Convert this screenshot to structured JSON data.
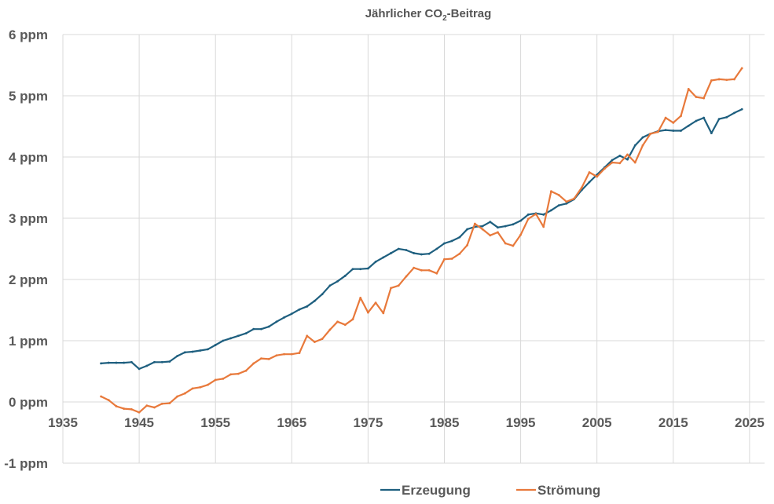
{
  "chart_data": {
    "type": "line",
    "title": "Jährlicher CO₂-Beitrag",
    "title_parts": {
      "pre": "Jährlicher CO",
      "sub": "2",
      "post": "-Beitrag"
    },
    "xlabel": "",
    "ylabel": "",
    "xlim": [
      1935,
      2027
    ],
    "ylim": [
      -1,
      6
    ],
    "grid": true,
    "legend_position": "bottom",
    "x_ticks": [
      1935,
      1945,
      1955,
      1965,
      1975,
      1985,
      1995,
      2005,
      2015,
      2025
    ],
    "x_tick_labels": [
      "1935",
      "1945",
      "1955",
      "1965",
      "1975",
      "1985",
      "1995",
      "2005",
      "2015",
      "2025"
    ],
    "y_ticks": [
      -1,
      0,
      1,
      2,
      3,
      4,
      5,
      6
    ],
    "y_tick_labels": [
      "-1 ppm",
      "0 ppm",
      "1 ppm",
      "2 ppm",
      "3 ppm",
      "4 ppm",
      "5 ppm",
      "6 ppm"
    ],
    "x_axis_crosses_at": 0,
    "x": [
      1940,
      1941,
      1942,
      1943,
      1944,
      1945,
      1946,
      1947,
      1948,
      1949,
      1950,
      1951,
      1952,
      1953,
      1954,
      1955,
      1956,
      1957,
      1958,
      1959,
      1960,
      1961,
      1962,
      1963,
      1964,
      1965,
      1966,
      1967,
      1968,
      1969,
      1970,
      1971,
      1972,
      1973,
      1974,
      1975,
      1976,
      1977,
      1978,
      1979,
      1980,
      1981,
      1982,
      1983,
      1984,
      1985,
      1986,
      1987,
      1988,
      1989,
      1990,
      1991,
      1992,
      1993,
      1994,
      1995,
      1996,
      1997,
      1998,
      1999,
      2000,
      2001,
      2002,
      2003,
      2004,
      2005,
      2006,
      2007,
      2008,
      2009,
      2010,
      2011,
      2012,
      2013,
      2014,
      2015,
      2016,
      2017,
      2018,
      2019,
      2020,
      2021,
      2022,
      2023,
      2024
    ],
    "series": [
      {
        "name": "Erzeugung",
        "color": "#1E5F7F",
        "values": [
          0.63,
          0.64,
          0.64,
          0.64,
          0.65,
          0.54,
          0.59,
          0.65,
          0.65,
          0.66,
          0.75,
          0.81,
          0.82,
          0.84,
          0.86,
          0.93,
          1.0,
          1.04,
          1.08,
          1.12,
          1.19,
          1.19,
          1.23,
          1.31,
          1.38,
          1.44,
          1.51,
          1.56,
          1.65,
          1.76,
          1.9,
          1.97,
          2.06,
          2.17,
          2.17,
          2.18,
          2.29,
          2.36,
          2.43,
          2.5,
          2.48,
          2.43,
          2.41,
          2.42,
          2.5,
          2.59,
          2.63,
          2.69,
          2.82,
          2.86,
          2.87,
          2.94,
          2.85,
          2.87,
          2.9,
          2.96,
          3.06,
          3.08,
          3.06,
          3.13,
          3.21,
          3.24,
          3.31,
          3.46,
          3.59,
          3.71,
          3.83,
          3.95,
          4.02,
          3.96,
          4.19,
          4.32,
          4.38,
          4.42,
          4.44,
          4.43,
          4.43,
          4.51,
          4.59,
          4.64,
          4.39,
          4.62,
          4.65,
          4.72,
          4.78
        ]
      },
      {
        "name": "Strömung",
        "color": "#E8793B",
        "values": [
          0.09,
          0.03,
          -0.07,
          -0.11,
          -0.12,
          -0.17,
          -0.06,
          -0.09,
          -0.03,
          -0.02,
          0.09,
          0.14,
          0.22,
          0.24,
          0.28,
          0.36,
          0.38,
          0.45,
          0.46,
          0.51,
          0.63,
          0.71,
          0.7,
          0.76,
          0.78,
          0.78,
          0.8,
          1.08,
          0.98,
          1.03,
          1.18,
          1.31,
          1.26,
          1.35,
          1.7,
          1.46,
          1.62,
          1.45,
          1.86,
          1.9,
          2.05,
          2.19,
          2.15,
          2.15,
          2.1,
          2.33,
          2.34,
          2.42,
          2.56,
          2.91,
          2.82,
          2.72,
          2.77,
          2.59,
          2.55,
          2.73,
          2.99,
          3.07,
          2.86,
          3.44,
          3.38,
          3.27,
          3.32,
          3.5,
          3.75,
          3.68,
          3.81,
          3.91,
          3.9,
          4.04,
          3.91,
          4.19,
          4.38,
          4.41,
          4.64,
          4.56,
          4.67,
          5.11,
          4.98,
          4.96,
          5.25,
          5.27,
          5.26,
          5.27,
          5.45
        ]
      }
    ]
  }
}
